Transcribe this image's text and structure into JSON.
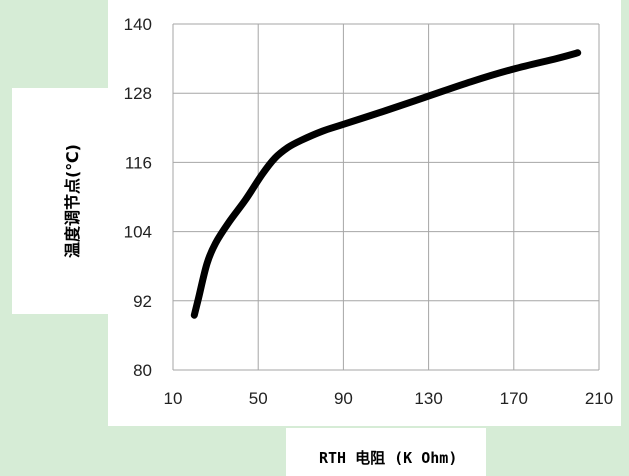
{
  "chart_data": {
    "type": "line",
    "title": "",
    "xlabel": "RTH 电阻 (K Ohm)",
    "ylabel": "温度调节点(℃)",
    "xlim": [
      10,
      210
    ],
    "ylim": [
      80,
      140
    ],
    "xticks": [
      "10",
      "50",
      "90",
      "130",
      "170",
      "210"
    ],
    "yticks": [
      "80",
      "92",
      "104",
      "116",
      "128",
      "140"
    ],
    "grid": true,
    "legend": "none",
    "series": [
      {
        "color": "#000000",
        "x": [
          20,
          22,
          26,
          30,
          36,
          44,
          52,
          58,
          64,
          70,
          80,
          90,
          110,
          130,
          150,
          170,
          190,
          200
        ],
        "y": [
          89.5,
          92.5,
          98.5,
          102,
          105.5,
          109.5,
          114,
          116.8,
          118.6,
          119.8,
          121.4,
          122.6,
          125,
          127.5,
          130,
          132.2,
          134,
          135
        ]
      }
    ]
  }
}
